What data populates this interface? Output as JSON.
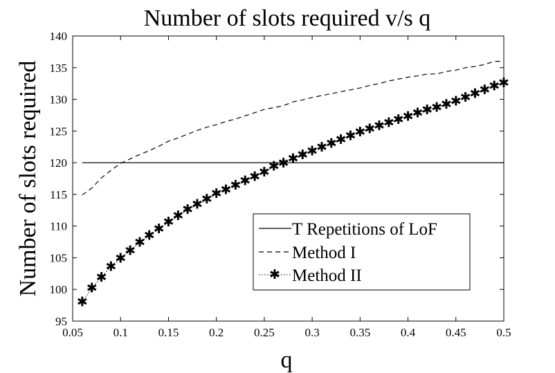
{
  "chart_data": {
    "type": "line",
    "title": "Number of slots required v/s q",
    "xlabel": "q",
    "ylabel": "Number of slots required",
    "xlim": [
      0.05,
      0.5
    ],
    "ylim": [
      95,
      140
    ],
    "xticks": [
      0.05,
      0.1,
      0.15,
      0.2,
      0.25,
      0.3,
      0.35,
      0.4,
      0.45,
      0.5
    ],
    "xtick_labels": [
      "0.05",
      "0.1",
      "0.15",
      "0.2",
      "0.25",
      "0.3",
      "0.35",
      "0.4",
      "0.45",
      "0.5"
    ],
    "yticks": [
      95,
      100,
      105,
      110,
      115,
      120,
      125,
      130,
      135,
      140
    ],
    "ytick_labels": [
      "95",
      "100",
      "105",
      "110",
      "115",
      "120",
      "125",
      "130",
      "135",
      "140"
    ],
    "grid": false,
    "legend_position": "bottom-right",
    "series": [
      {
        "name": "T Repetitions of LoF",
        "style": "solid",
        "x": [
          0.06,
          0.5
        ],
        "y": [
          120,
          120
        ]
      },
      {
        "name": "Method I",
        "style": "dashed",
        "x": [
          0.06,
          0.07,
          0.08,
          0.09,
          0.1,
          0.11,
          0.12,
          0.13,
          0.14,
          0.15,
          0.16,
          0.17,
          0.18,
          0.19,
          0.2,
          0.21,
          0.22,
          0.23,
          0.24,
          0.25,
          0.26,
          0.27,
          0.28,
          0.29,
          0.3,
          0.31,
          0.32,
          0.33,
          0.34,
          0.35,
          0.36,
          0.37,
          0.38,
          0.39,
          0.4,
          0.41,
          0.42,
          0.43,
          0.44,
          0.45,
          0.46,
          0.47,
          0.48,
          0.49,
          0.5
        ],
        "y": [
          114.9,
          116.0,
          117.6,
          118.8,
          119.9,
          120.6,
          121.3,
          121.9,
          122.6,
          123.4,
          123.9,
          124.5,
          125.1,
          125.6,
          126.0,
          126.5,
          126.9,
          127.4,
          127.9,
          128.4,
          128.7,
          129.0,
          129.6,
          129.9,
          130.3,
          130.6,
          130.9,
          131.2,
          131.5,
          131.8,
          132.2,
          132.5,
          132.9,
          133.2,
          133.5,
          133.7,
          134.0,
          134.0,
          134.4,
          134.6,
          135.0,
          135.2,
          135.5,
          136.0,
          136.0
        ]
      },
      {
        "name": "Method II",
        "style": "dotted-star",
        "x": [
          0.06,
          0.07,
          0.08,
          0.09,
          0.1,
          0.11,
          0.12,
          0.13,
          0.14,
          0.15,
          0.16,
          0.17,
          0.18,
          0.19,
          0.2,
          0.21,
          0.22,
          0.23,
          0.24,
          0.25,
          0.26,
          0.27,
          0.28,
          0.29,
          0.3,
          0.31,
          0.32,
          0.33,
          0.34,
          0.35,
          0.36,
          0.37,
          0.38,
          0.39,
          0.4,
          0.41,
          0.42,
          0.43,
          0.44,
          0.45,
          0.46,
          0.47,
          0.48,
          0.49,
          0.5
        ],
        "y": [
          98.0,
          100.2,
          101.9,
          103.6,
          104.9,
          106.1,
          107.4,
          108.5,
          109.5,
          110.6,
          111.6,
          112.6,
          113.4,
          114.2,
          115.1,
          115.7,
          116.4,
          117.1,
          117.8,
          118.5,
          119.4,
          119.9,
          120.6,
          121.2,
          121.8,
          122.4,
          123.0,
          123.6,
          124.2,
          124.8,
          125.3,
          125.8,
          126.3,
          126.8,
          127.3,
          127.8,
          128.3,
          128.7,
          129.2,
          129.7,
          130.3,
          130.9,
          131.5,
          132.1,
          132.6
        ]
      }
    ]
  }
}
